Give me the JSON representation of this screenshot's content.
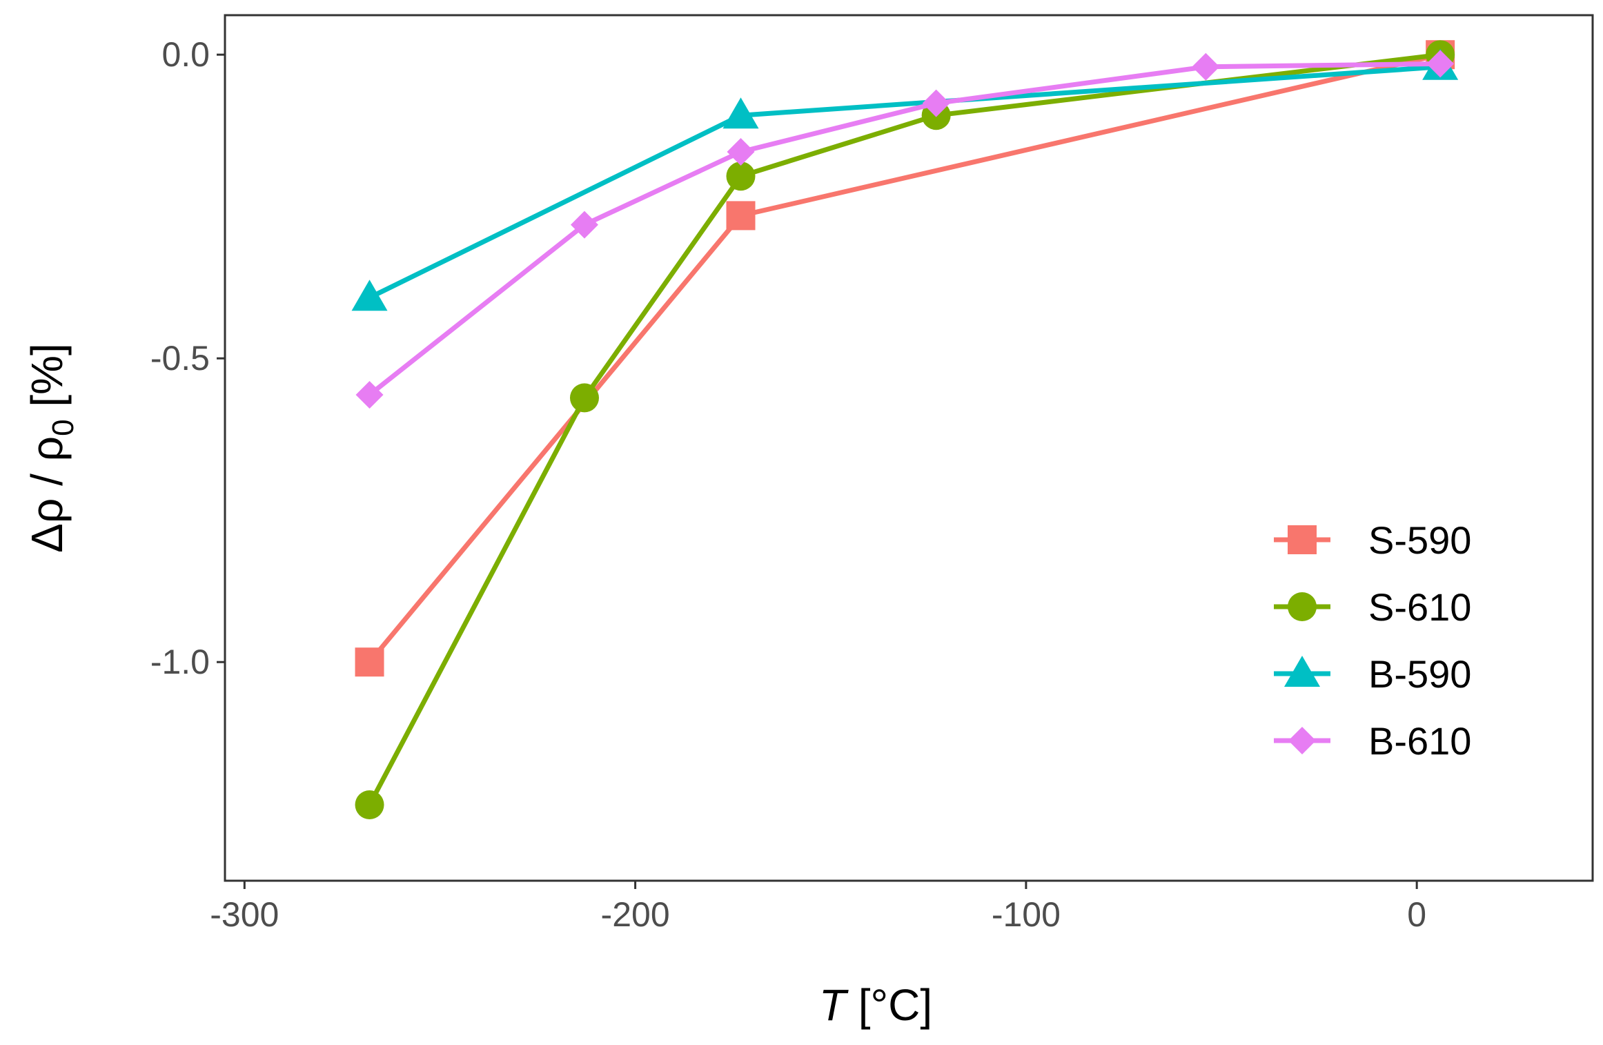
{
  "chart_data": {
    "type": "line",
    "title": "",
    "xlabel_var": "T",
    "xlabel_unit": " [°C]",
    "ylabel_main": "Δρ / ρ",
    "ylabel_sub": "0",
    "ylabel_unit": " [%]",
    "xlim": [
      -305,
      45
    ],
    "ylim": [
      -1.36,
      0.065
    ],
    "x_ticks": [
      -300,
      -200,
      -100,
      0
    ],
    "x_tick_labels": [
      "-300",
      "-200",
      "-100",
      "0"
    ],
    "y_ticks": [
      0.0,
      -0.5,
      -1.0
    ],
    "y_tick_labels": [
      "0.0",
      "-0.5",
      "-1.0"
    ],
    "grid": false,
    "legend_position": "bottom-right",
    "series": [
      {
        "name": "S-590",
        "color": "#F8766D",
        "marker": "square",
        "x": [
          -268,
          -173,
          6
        ],
        "y": [
          -1.0,
          -0.265,
          0.0
        ]
      },
      {
        "name": "S-610",
        "color": "#7CAE00",
        "marker": "circle",
        "x": [
          -268,
          -213,
          -173,
          -123,
          6
        ],
        "y": [
          -1.235,
          -0.565,
          -0.2,
          -0.1,
          0.0
        ]
      },
      {
        "name": "B-590",
        "color": "#00BFC4",
        "marker": "triangle",
        "x": [
          -268,
          -173,
          6
        ],
        "y": [
          -0.4,
          -0.1,
          -0.02
        ]
      },
      {
        "name": "B-610",
        "color": "#E77DF3",
        "marker": "diamond",
        "x": [
          -268,
          -213,
          -173,
          -123,
          -54,
          6
        ],
        "y": [
          -0.56,
          -0.28,
          -0.16,
          -0.08,
          -0.02,
          -0.015
        ]
      }
    ]
  }
}
